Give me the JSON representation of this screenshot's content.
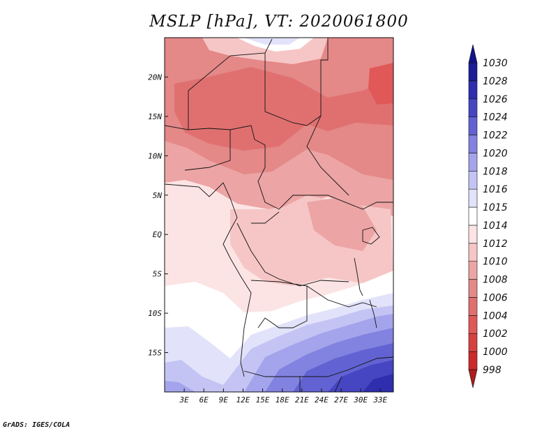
{
  "title": "MSLP [hPa], VT: 2020061800",
  "credit": "GrADS: IGES/COLA",
  "map": {
    "lon_labels": [
      "3E",
      "6E",
      "9E",
      "12E",
      "15E",
      "18E",
      "21E",
      "24E",
      "27E",
      "30E",
      "33E"
    ],
    "lat_labels": [
      "20N",
      "15N",
      "10N",
      "5N",
      "EQ",
      "5S",
      "10S",
      "15S"
    ],
    "lon_range": [
      0,
      35
    ],
    "lat_range": [
      -20,
      25
    ]
  },
  "colorbar": {
    "levels": [
      "998",
      "1000",
      "1002",
      "1004",
      "1006",
      "1008",
      "1010",
      "1012",
      "1014",
      "1015",
      "1016",
      "1018",
      "1020",
      "1022",
      "1024",
      "1026",
      "1028",
      "1030"
    ],
    "colors": [
      "#b01c1c",
      "#cc2a2a",
      "#d84040",
      "#e05858",
      "#e07070",
      "#e48888",
      "#eca4a4",
      "#f6c6c6",
      "#fce4e4",
      "#ffffff",
      "#e2e2fa",
      "#c4c4f4",
      "#a4a4ec",
      "#8282e0",
      "#6262d2",
      "#4646c2",
      "#2e2eae",
      "#1c1c96",
      "#12128a"
    ]
  }
}
